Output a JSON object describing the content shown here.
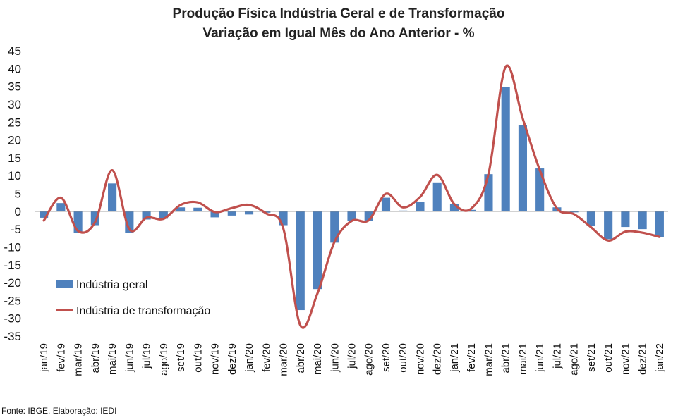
{
  "chart_data": {
    "type": "bar",
    "title": "Produção Física Indústria Geral e de Transformação",
    "subtitle": "Variação em Igual Mês do Ano Anterior - %",
    "categories": [
      "jan/19",
      "fev/19",
      "mar/19",
      "abr/19",
      "mai/19",
      "jun/19",
      "jul/19",
      "ago/19",
      "set/19",
      "out/19",
      "nov/19",
      "dez/19",
      "jan/20",
      "fev/20",
      "mar/20",
      "abr/20",
      "mai/20",
      "jun/20",
      "jul/20",
      "ago/20",
      "set/20",
      "out/20",
      "nov/20",
      "dez/20",
      "jan/21",
      "fev/21",
      "mar/21",
      "abr/21",
      "mai/21",
      "jun/21",
      "jul/21",
      "ago/21",
      "set/21",
      "out/21",
      "nov/21",
      "dez/21",
      "jan/22"
    ],
    "ylim": [
      -35,
      45
    ],
    "yticks": [
      "45",
      "40",
      "35",
      "30",
      "25",
      "20",
      "15",
      "10",
      "5",
      "0",
      "-5",
      "-10",
      "-15",
      "-20",
      "-25",
      "-30",
      "-35"
    ],
    "grid": false,
    "legend_position": "bottom-left",
    "series": [
      {
        "name": "Indústria geral",
        "type": "bar",
        "color": "#4f81bd",
        "values": [
          -1.8,
          2.3,
          -6.1,
          -3.9,
          7.8,
          -6.0,
          -2.3,
          -2.1,
          1.1,
          1.0,
          -1.7,
          -1.2,
          -0.9,
          -0.4,
          -3.9,
          -27.7,
          -21.8,
          -8.8,
          -2.8,
          -2.7,
          3.8,
          0.2,
          2.6,
          8.1,
          2.1,
          0.4,
          10.4,
          34.8,
          24.1,
          12.0,
          1.1,
          -0.3,
          -4.0,
          -7.8,
          -4.4,
          -5.0,
          -7.2
        ]
      },
      {
        "name": "Indústria de transformação",
        "type": "line",
        "color": "#c0504d",
        "values": [
          -2.6,
          3.8,
          -5.5,
          -3.0,
          11.5,
          -5.0,
          -1.8,
          -2.1,
          1.8,
          2.5,
          -0.2,
          0.9,
          1.8,
          -0.6,
          -4.8,
          -32.0,
          -23.0,
          -8.5,
          -2.7,
          -2.5,
          4.9,
          1.1,
          4.0,
          10.2,
          2.0,
          0.8,
          10.5,
          40.5,
          26.0,
          11.5,
          0.8,
          -0.8,
          -4.5,
          -8.2,
          -5.7,
          -6.0,
          -7.2
        ]
      }
    ]
  },
  "footer": {
    "source": "Fonte: IBGE. Elaboração: IEDI"
  }
}
